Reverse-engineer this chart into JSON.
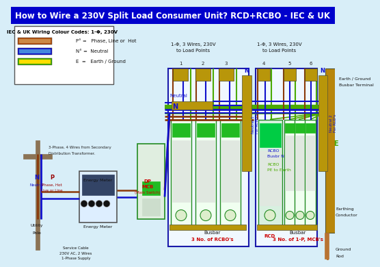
{
  "title": "How to Wire a 230V Split Load Consumer Unit? RCD+RCBO - IEC & UK",
  "title_bg": "#0000cc",
  "title_color": "#ffffff",
  "bg_color": "#d8eef8",
  "legend_title": "IEC & UK Wiring Colour Codes: 1-Φ, 230V",
  "phase_color": "#8B3A0A",
  "neutral_color": "#1010cc",
  "earth_color": "#4aaa00",
  "phase_color2": "#660000",
  "wire_brown": "#8B3A0A",
  "wire_blue": "#1010cc",
  "wire_green": "#4aaa00",
  "device_green": "#22bb22",
  "device_bg": "#e8f8e8",
  "rcd_green": "#00cc44",
  "busbar_color": "#b8960a",
  "pole_color": "#8B7355",
  "meter_bg": "#ddeeff",
  "meter_dark": "#334466",
  "rcbo_border": "#228B22",
  "section_border": "#1a1aaa",
  "earth_busbar": "#b8860b"
}
